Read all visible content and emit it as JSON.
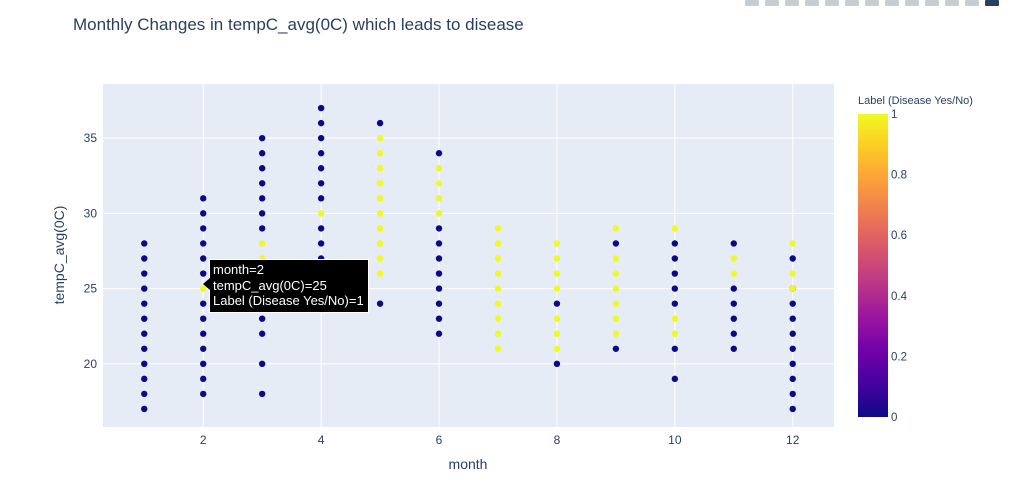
{
  "title": "Monthly Changes in tempC_avg(0C) which leads to disease",
  "colorbar": {
    "title": "Label (Disease Yes/No)",
    "ticks": [
      "0",
      "0.2",
      "0.4",
      "0.6",
      "0.8",
      "1"
    ],
    "colors": [
      "#0d0887",
      "#46039f",
      "#7201a8",
      "#9c179e",
      "#bd3786",
      "#d8576b",
      "#ed7953",
      "#fb9f3a",
      "#fdca26",
      "#f0f921"
    ]
  },
  "tooltip": {
    "line1": "month=2",
    "line2": "tempC_avg(0C)=25",
    "line3": "Label (Disease Yes/No)=1"
  },
  "modebar": [
    "camera-icon",
    "zoom-icon",
    "pan-icon",
    "select-icon",
    "lasso-icon",
    "zoom-in-icon",
    "zoom-out-icon",
    "autoscale-icon",
    "reset-icon",
    "spike-icon",
    "hover-closest-icon",
    "hover-compare-icon",
    "plotly-logo-icon"
  ],
  "chart_data": {
    "type": "scatter",
    "title": "Monthly Changes in tempC_avg(0C) which leads to disease",
    "xlabel": "month",
    "ylabel": "tempC_avg(0C)",
    "xlim": [
      0.3,
      12.7
    ],
    "ylim": [
      15.8,
      38.6
    ],
    "xticks": [
      2,
      4,
      6,
      8,
      10,
      12
    ],
    "yticks": [
      20,
      25,
      30,
      35
    ],
    "grid": true,
    "plot_bg": "#e5ecf6",
    "points_label0": [
      [
        1,
        17
      ],
      [
        1,
        18
      ],
      [
        1,
        19
      ],
      [
        1,
        20
      ],
      [
        1,
        21
      ],
      [
        1,
        22
      ],
      [
        1,
        23
      ],
      [
        1,
        24
      ],
      [
        1,
        25
      ],
      [
        1,
        26
      ],
      [
        1,
        27
      ],
      [
        1,
        28
      ],
      [
        2,
        18
      ],
      [
        2,
        19
      ],
      [
        2,
        20
      ],
      [
        2,
        21
      ],
      [
        2,
        22
      ],
      [
        2,
        23
      ],
      [
        2,
        24
      ],
      [
        2,
        26
      ],
      [
        2,
        27
      ],
      [
        2,
        28
      ],
      [
        2,
        29
      ],
      [
        2,
        30
      ],
      [
        2,
        31
      ],
      [
        3,
        18
      ],
      [
        3,
        20
      ],
      [
        3,
        22
      ],
      [
        3,
        23
      ],
      [
        3,
        24
      ],
      [
        3,
        25
      ],
      [
        3,
        26
      ],
      [
        3,
        29
      ],
      [
        3,
        30
      ],
      [
        3,
        31
      ],
      [
        3,
        32
      ],
      [
        3,
        33
      ],
      [
        3,
        34
      ],
      [
        3,
        35
      ],
      [
        4,
        26
      ],
      [
        4,
        27
      ],
      [
        4,
        28
      ],
      [
        4,
        29
      ],
      [
        4,
        31
      ],
      [
        4,
        32
      ],
      [
        4,
        33
      ],
      [
        4,
        34
      ],
      [
        4,
        35
      ],
      [
        4,
        36
      ],
      [
        4,
        37
      ],
      [
        5,
        24
      ],
      [
        5,
        36
      ],
      [
        6,
        22
      ],
      [
        6,
        23
      ],
      [
        6,
        24
      ],
      [
        6,
        25
      ],
      [
        6,
        26
      ],
      [
        6,
        27
      ],
      [
        6,
        28
      ],
      [
        6,
        29
      ],
      [
        6,
        34
      ],
      [
        8,
        20
      ],
      [
        8,
        24
      ],
      [
        9,
        21
      ],
      [
        9,
        28
      ],
      [
        10,
        19
      ],
      [
        10,
        21
      ],
      [
        10,
        24
      ],
      [
        10,
        25
      ],
      [
        10,
        26
      ],
      [
        10,
        27
      ],
      [
        10,
        28
      ],
      [
        11,
        21
      ],
      [
        11,
        22
      ],
      [
        11,
        23
      ],
      [
        11,
        24
      ],
      [
        11,
        25
      ],
      [
        11,
        28
      ],
      [
        12,
        17
      ],
      [
        12,
        18
      ],
      [
        12,
        19
      ],
      [
        12,
        20
      ],
      [
        12,
        21
      ],
      [
        12,
        22
      ],
      [
        12,
        23
      ],
      [
        12,
        24
      ],
      [
        12,
        25
      ],
      [
        12,
        27
      ]
    ],
    "points_label1": [
      [
        2,
        25
      ],
      [
        3,
        27
      ],
      [
        3,
        28
      ],
      [
        4,
        30
      ],
      [
        5,
        26
      ],
      [
        5,
        27
      ],
      [
        5,
        28
      ],
      [
        5,
        29
      ],
      [
        5,
        30
      ],
      [
        5,
        31
      ],
      [
        5,
        32
      ],
      [
        5,
        33
      ],
      [
        5,
        34
      ],
      [
        5,
        35
      ],
      [
        6,
        30
      ],
      [
        6,
        31
      ],
      [
        6,
        32
      ],
      [
        6,
        33
      ],
      [
        7,
        21
      ],
      [
        7,
        22
      ],
      [
        7,
        23
      ],
      [
        7,
        24
      ],
      [
        7,
        25
      ],
      [
        7,
        26
      ],
      [
        7,
        27
      ],
      [
        7,
        28
      ],
      [
        7,
        29
      ],
      [
        8,
        21
      ],
      [
        8,
        22
      ],
      [
        8,
        23
      ],
      [
        8,
        25
      ],
      [
        8,
        26
      ],
      [
        8,
        27
      ],
      [
        8,
        28
      ],
      [
        9,
        22
      ],
      [
        9,
        23
      ],
      [
        9,
        24
      ],
      [
        9,
        25
      ],
      [
        9,
        26
      ],
      [
        9,
        27
      ],
      [
        9,
        29
      ],
      [
        10,
        22
      ],
      [
        10,
        23
      ],
      [
        10,
        29
      ],
      [
        11,
        26
      ],
      [
        11,
        27
      ],
      [
        12,
        25
      ],
      [
        12,
        26
      ],
      [
        12,
        28
      ]
    ]
  }
}
